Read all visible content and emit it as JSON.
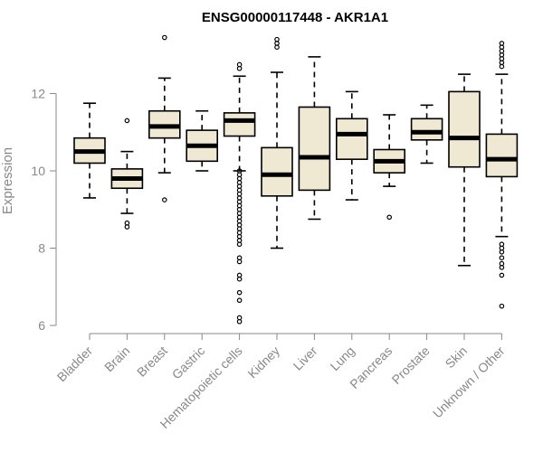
{
  "chart_data": {
    "type": "boxplot",
    "title": "ENSG00000117448 - AKR1A1",
    "xlabel": "",
    "ylabel": "Expression",
    "ylim": [
      6,
      13.6
    ],
    "yticks": [
      6,
      8,
      10,
      12
    ],
    "categories": [
      "Bladder",
      "Brain",
      "Breast",
      "Gastric",
      "Hematopoietic cells",
      "Kidney",
      "Liver",
      "Lung",
      "Pancreas",
      "Prostate",
      "Skin",
      "Unknown / Other"
    ],
    "boxes": [
      {
        "name": "Bladder",
        "whisker_low": 9.3,
        "q1": 10.2,
        "median": 10.5,
        "q3": 10.85,
        "whisker_high": 11.75,
        "outliers": []
      },
      {
        "name": "Brain",
        "whisker_low": 8.9,
        "q1": 9.55,
        "median": 9.8,
        "q3": 10.05,
        "whisker_high": 10.5,
        "outliers": [
          8.55,
          8.65,
          11.3
        ]
      },
      {
        "name": "Breast",
        "whisker_low": 9.95,
        "q1": 10.85,
        "median": 11.15,
        "q3": 11.55,
        "whisker_high": 12.4,
        "outliers": [
          9.25,
          13.45
        ]
      },
      {
        "name": "Gastric",
        "whisker_low": 10.0,
        "q1": 10.25,
        "median": 10.65,
        "q3": 11.05,
        "whisker_high": 11.55,
        "outliers": []
      },
      {
        "name": "Hematopoietic cells",
        "whisker_low": 10.0,
        "q1": 10.9,
        "median": 11.3,
        "q3": 11.5,
        "whisker_high": 12.45,
        "outliers": [
          12.65,
          12.75,
          10.0,
          9.9,
          9.8,
          9.7,
          9.6,
          9.5,
          9.4,
          9.3,
          9.2,
          9.1,
          9.0,
          8.9,
          8.8,
          8.7,
          8.6,
          8.5,
          8.4,
          8.3,
          8.2,
          8.1,
          7.75,
          7.65,
          7.3,
          7.2,
          6.85,
          6.65,
          6.2,
          6.1
        ]
      },
      {
        "name": "Kidney",
        "whisker_low": 8.0,
        "q1": 9.35,
        "median": 9.9,
        "q3": 10.6,
        "whisker_high": 12.55,
        "outliers": [
          13.2,
          13.3,
          13.4
        ]
      },
      {
        "name": "Liver",
        "whisker_low": 8.75,
        "q1": 9.5,
        "median": 10.35,
        "q3": 11.65,
        "whisker_high": 12.95,
        "outliers": []
      },
      {
        "name": "Lung",
        "whisker_low": 9.25,
        "q1": 10.3,
        "median": 10.95,
        "q3": 11.35,
        "whisker_high": 12.05,
        "outliers": []
      },
      {
        "name": "Pancreas",
        "whisker_low": 9.6,
        "q1": 9.95,
        "median": 10.25,
        "q3": 10.55,
        "whisker_high": 11.45,
        "outliers": [
          8.8
        ]
      },
      {
        "name": "Prostate",
        "whisker_low": 10.2,
        "q1": 10.8,
        "median": 11.0,
        "q3": 11.35,
        "whisker_high": 11.7,
        "outliers": []
      },
      {
        "name": "Skin",
        "whisker_low": 7.55,
        "q1": 10.1,
        "median": 10.85,
        "q3": 12.05,
        "whisker_high": 12.5,
        "outliers": []
      },
      {
        "name": "Unknown / Other",
        "whisker_low": 8.3,
        "q1": 9.85,
        "median": 10.3,
        "q3": 10.95,
        "whisker_high": 12.5,
        "outliers": [
          12.7,
          12.8,
          12.9,
          13.0,
          13.1,
          13.2,
          13.3,
          8.1,
          8.0,
          7.9,
          7.75,
          7.6,
          7.5,
          7.3,
          6.5
        ]
      }
    ]
  }
}
